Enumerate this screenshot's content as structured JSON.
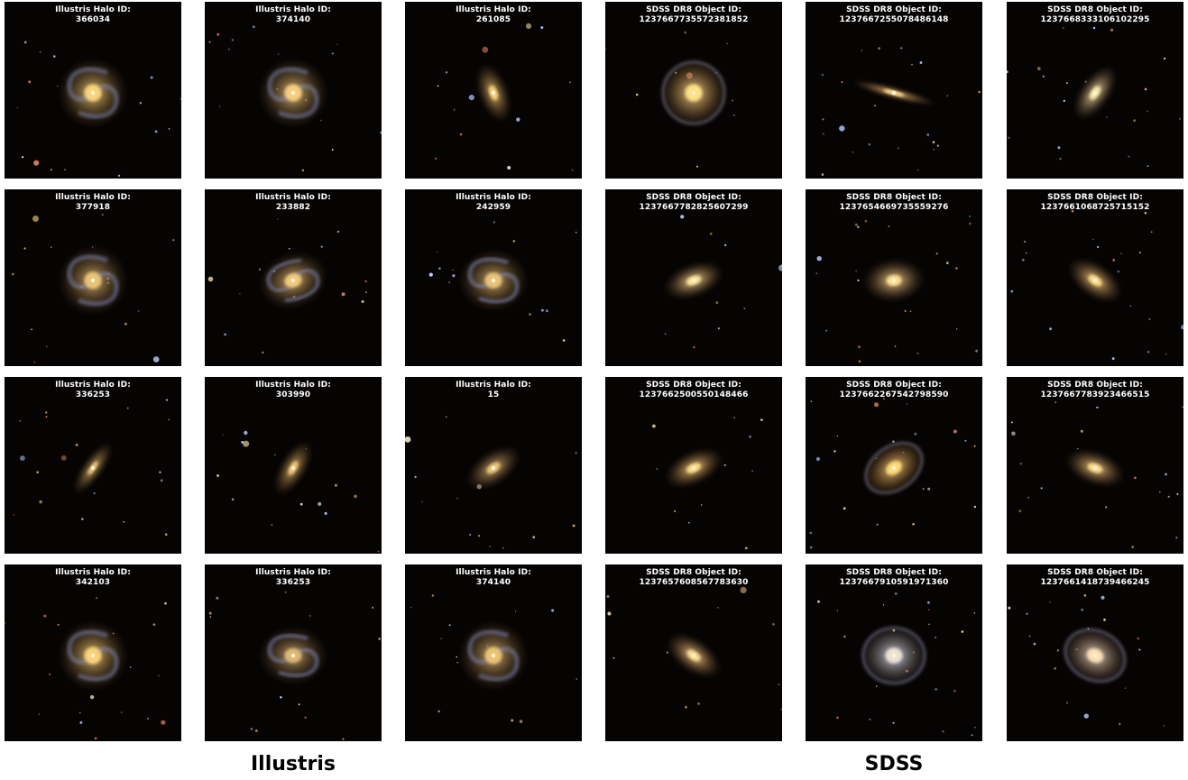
{
  "groups": {
    "left_label": "Illustris",
    "right_label": "SDSS"
  },
  "tiles": [
    {
      "line1": "Illustris Halo ID:",
      "line2": "366034",
      "kind": "spiral",
      "angle": 0,
      "elong": 1.0,
      "color": "#b79a5e",
      "seed": 1
    },
    {
      "line1": "Illustris Halo ID:",
      "line2": "374140",
      "kind": "spiral",
      "angle": 0,
      "elong": 1.0,
      "color": "#b39660",
      "seed": 2
    },
    {
      "line1": "Illustris Halo ID:",
      "line2": "261085",
      "kind": "disk",
      "angle": 70,
      "elong": 0.5,
      "color": "#b8995c",
      "seed": 3
    },
    {
      "line1": "SDSS DR8 Object ID:",
      "line2": "1237667735572381852",
      "kind": "ring",
      "angle": 0,
      "elong": 1.0,
      "color": "#c9a86a",
      "seed": 4
    },
    {
      "line1": "SDSS DR8 Object ID:",
      "line2": "1237667255078486148",
      "kind": "edgeon",
      "angle": 15,
      "elong": 0.15,
      "color": "#c9a36a",
      "seed": 5
    },
    {
      "line1": "SDSS DR8 Object ID:",
      "line2": "1237668333106102295",
      "kind": "disk",
      "angle": -55,
      "elong": 0.5,
      "color": "#c8b38a",
      "seed": 6
    },
    {
      "line1": "Illustris Halo ID:",
      "line2": "377918",
      "kind": "spiral",
      "angle": 0,
      "elong": 1.0,
      "color": "#a88a58",
      "seed": 7
    },
    {
      "line1": "Illustris Halo ID:",
      "line2": "233882",
      "kind": "spiral",
      "angle": -20,
      "elong": 0.8,
      "color": "#b0915e",
      "seed": 8
    },
    {
      "line1": "Illustris Halo ID:",
      "line2": "242959",
      "kind": "spiral",
      "angle": 0,
      "elong": 0.9,
      "color": "#a88a5a",
      "seed": 9
    },
    {
      "line1": "SDSS DR8 Object ID:",
      "line2": "1237667782825607299",
      "kind": "disk",
      "angle": -20,
      "elong": 0.55,
      "color": "#c9ad78",
      "seed": 10
    },
    {
      "line1": "SDSS DR8 Object ID:",
      "line2": "1237654669735559276",
      "kind": "disk",
      "angle": -5,
      "elong": 0.7,
      "color": "#c8a874",
      "seed": 11
    },
    {
      "line1": "SDSS DR8 Object ID:",
      "line2": "1237661068725715152",
      "kind": "disk",
      "angle": 35,
      "elong": 0.55,
      "color": "#c9a46a",
      "seed": 12
    },
    {
      "line1": "Illustris Halo ID:",
      "line2": "336253",
      "kind": "disk",
      "angle": -55,
      "elong": 0.35,
      "color": "#ab8d5b",
      "seed": 13
    },
    {
      "line1": "Illustris Halo ID:",
      "line2": "303990",
      "kind": "disk",
      "angle": -60,
      "elong": 0.45,
      "color": "#b08f58",
      "seed": 14
    },
    {
      "line1": "Illustris Halo ID:",
      "line2": "15",
      "kind": "disk",
      "angle": -35,
      "elong": 0.55,
      "color": "#ab8d5d",
      "seed": 15
    },
    {
      "line1": "SDSS DR8 Object ID:",
      "line2": "1237662500550148466",
      "kind": "disk",
      "angle": -25,
      "elong": 0.55,
      "color": "#c9a466",
      "seed": 16
    },
    {
      "line1": "SDSS DR8 Object ID:",
      "line2": "1237662267542798590",
      "kind": "ring",
      "angle": -35,
      "elong": 0.7,
      "color": "#c9a15c",
      "seed": 17
    },
    {
      "line1": "SDSS DR8 Object ID:",
      "line2": "1237667783923466515",
      "kind": "disk",
      "angle": 20,
      "elong": 0.55,
      "color": "#c9a66e",
      "seed": 18
    },
    {
      "line1": "Illustris Halo ID:",
      "line2": "342103",
      "kind": "spiral",
      "angle": 0,
      "elong": 1.0,
      "color": "#b8985c",
      "seed": 19
    },
    {
      "line1": "Illustris Halo ID:",
      "line2": "336253",
      "kind": "spiral",
      "angle": 0,
      "elong": 0.85,
      "color": "#9a8058",
      "seed": 20
    },
    {
      "line1": "Illustris Halo ID:",
      "line2": "374140",
      "kind": "spiral",
      "angle": 0,
      "elong": 1.0,
      "color": "#a98a58",
      "seed": 21
    },
    {
      "line1": "SDSS DR8 Object ID:",
      "line2": "1237657608567783630",
      "kind": "disk",
      "angle": 35,
      "elong": 0.55,
      "color": "#c9a672",
      "seed": 22
    },
    {
      "line1": "SDSS DR8 Object ID:",
      "line2": "1237667910591971360",
      "kind": "ring",
      "angle": 0,
      "elong": 0.9,
      "color": "#a8aab8",
      "seed": 23
    },
    {
      "line1": "SDSS DR8 Object ID:",
      "line2": "1237661418739466245",
      "kind": "ring",
      "angle": 25,
      "elong": 0.8,
      "color": "#b9a898",
      "seed": 24
    }
  ]
}
